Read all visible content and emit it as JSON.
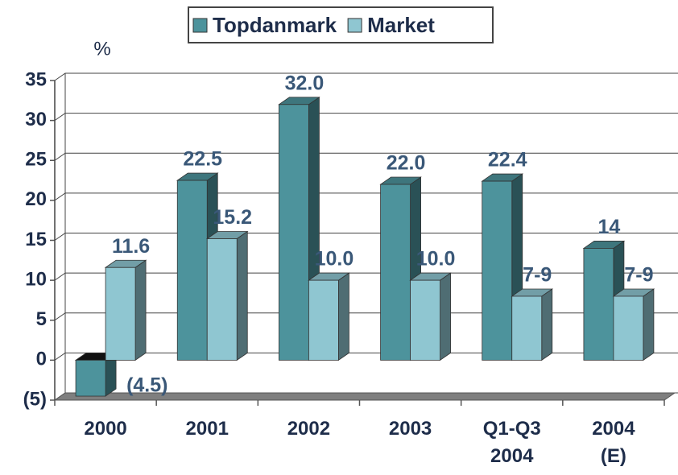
{
  "chart_data": {
    "type": "bar3d",
    "y_label": "%",
    "categories": [
      "2000",
      "2001",
      "2002",
      "2003",
      "Q1-Q3 2004",
      "2004 (E)"
    ],
    "series": [
      {
        "name": "Topdanmark",
        "color": "#4d939c",
        "values": [
          -4.5,
          22.5,
          32.0,
          22.0,
          22.4,
          14
        ],
        "value_labels": [
          "(4.5)",
          "22.5",
          "32.0",
          "22.0",
          "22.4",
          "14"
        ]
      },
      {
        "name": "Market",
        "color": "#8fc6d1",
        "values": [
          11.6,
          15.2,
          10.0,
          10.0,
          8,
          8
        ],
        "value_labels": [
          "11.6",
          "15.2",
          "10.0",
          "10.0",
          "7-9",
          "7-9"
        ]
      }
    ],
    "ylim": [
      -5,
      35
    ],
    "yticks": [
      {
        "value": -5,
        "label": "(5)"
      },
      0,
      5,
      10,
      15,
      20,
      25,
      30,
      35
    ],
    "grid": true,
    "legend": "top"
  }
}
